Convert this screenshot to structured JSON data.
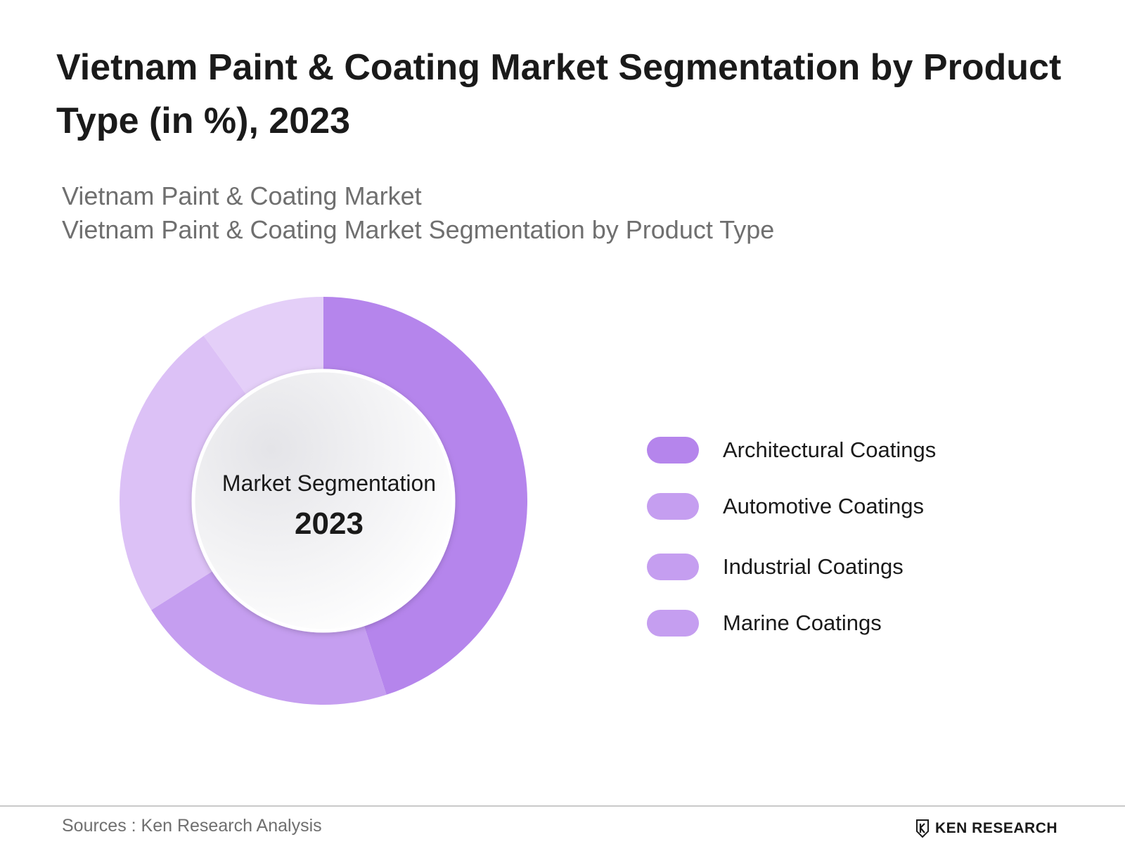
{
  "header": {
    "title": "Vietnam Paint & Coating Market Segmentation by Product Type (in %), 2023",
    "subtitle_lines": [
      "Vietnam Paint & Coating Market",
      "Vietnam Paint & Coating Market Segmentation by Product Type"
    ]
  },
  "chart_data": {
    "type": "pie",
    "variant": "donut",
    "center_caption": "Market Segmentation",
    "center_year": "2023",
    "legend_position": "right",
    "series": [
      {
        "name": "Architectural Coatings",
        "value": 45,
        "color": "#b585ec"
      },
      {
        "name": "Automotive Coatings",
        "value": 21,
        "color": "#c59ef0"
      },
      {
        "name": "Industrial Coatings",
        "value": 24,
        "color": "#dcc1f6"
      },
      {
        "name": "Marine Coatings",
        "value": 10,
        "color": "#e4cff8"
      }
    ],
    "legend_swatch_colors": [
      "#b585ec",
      "#c59ef0",
      "#c59ef0",
      "#c59ef0"
    ]
  },
  "footer": {
    "source": "Sources : Ken Research Analysis",
    "brand": "KEN RESEARCH"
  }
}
